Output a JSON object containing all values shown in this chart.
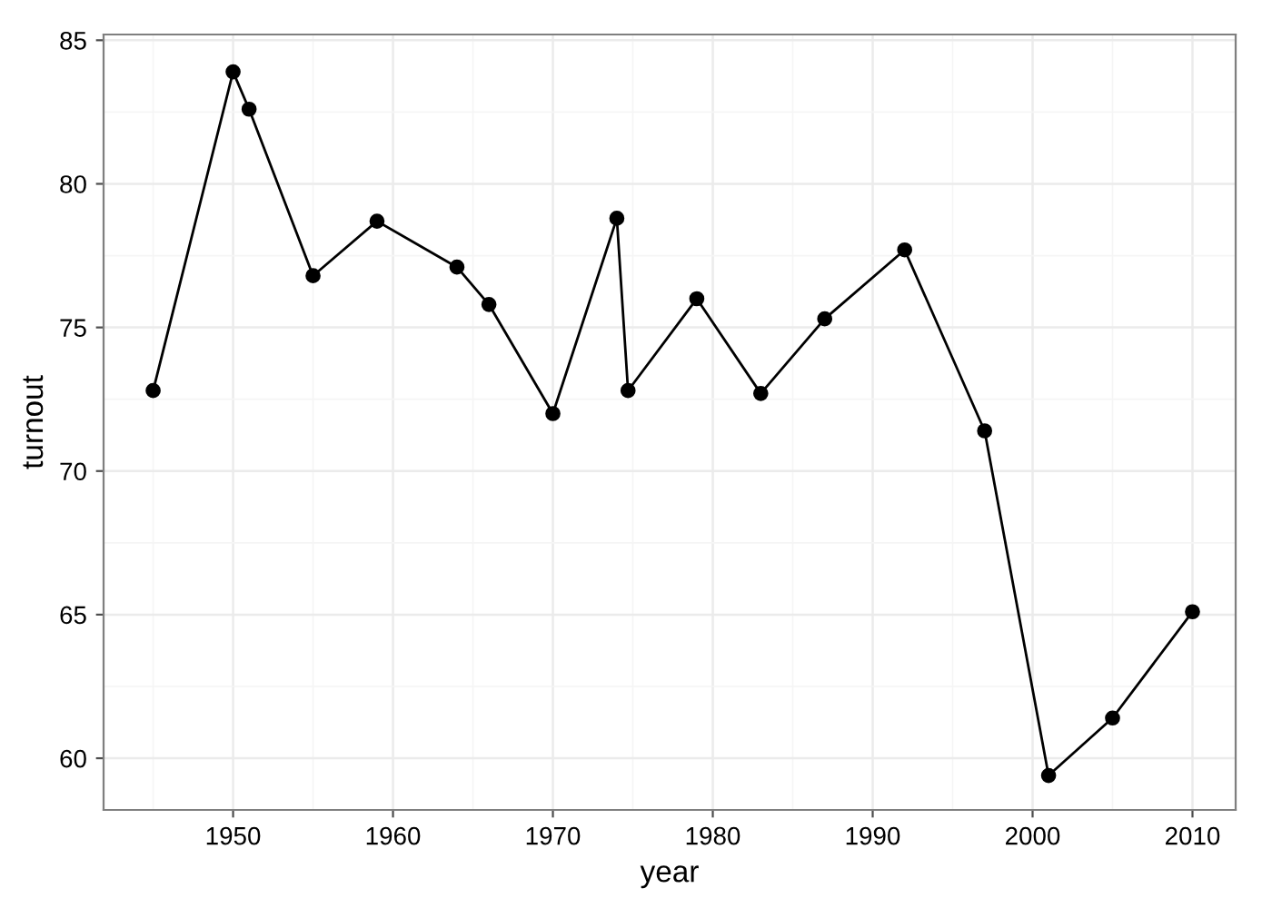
{
  "chart_data": {
    "type": "line",
    "xlabel": "year",
    "ylabel": "turnout",
    "x": [
      1945,
      1950,
      1951,
      1955,
      1959,
      1964,
      1966,
      1970,
      1974,
      1974.7,
      1979,
      1983,
      1987,
      1992,
      1997,
      2001,
      2005,
      2010
    ],
    "series": [
      {
        "color": "#000000",
        "values": [
          72.8,
          83.9,
          82.6,
          76.8,
          78.7,
          77.1,
          75.8,
          72.0,
          78.8,
          72.8,
          76.0,
          72.7,
          75.3,
          77.7,
          71.4,
          59.4,
          61.4,
          65.1
        ]
      }
    ],
    "xlim": [
      1941.9,
      2012.7
    ],
    "ylim": [
      58.2,
      85.2
    ],
    "xticks": [
      1950,
      1960,
      1970,
      1980,
      1990,
      2000,
      2010
    ],
    "yticks": [
      60,
      65,
      70,
      75,
      80,
      85
    ],
    "grid": true,
    "marker": "circle",
    "line_style": "solid"
  }
}
